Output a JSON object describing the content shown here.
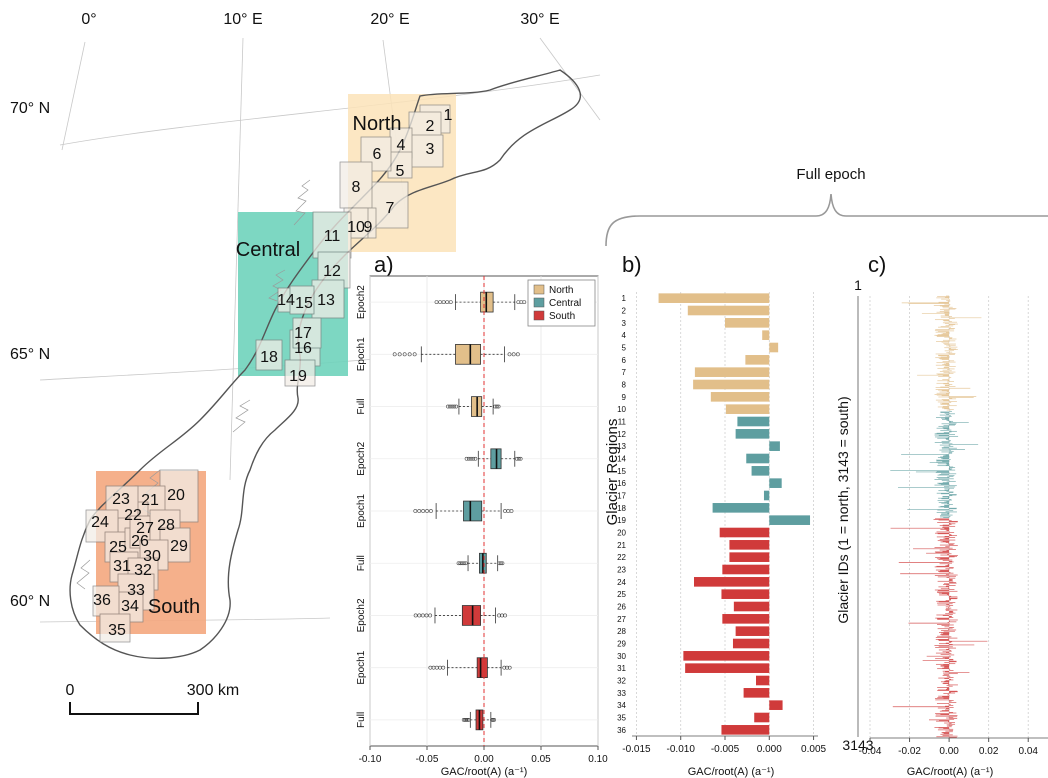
{
  "colors": {
    "north": "#E2BF8A",
    "central": "#5E9EA0",
    "south": "#D03A3A",
    "north_box": "#FBE3B8",
    "central_box": "#6FD3BB",
    "south_box": "#F4A77E",
    "zero_line": "#E03030",
    "gap": "#F7F3EC"
  },
  "map": {
    "lon_labels": [
      "0°",
      "10° E",
      "20° E",
      "30° E"
    ],
    "lat_labels": [
      "70° N",
      "65° N",
      "60° N"
    ],
    "regions": [
      {
        "name": "North",
        "color": "north_box"
      },
      {
        "name": "Central",
        "color": "central_box"
      },
      {
        "name": "South",
        "color": "south_box"
      }
    ],
    "scale_left": "0",
    "scale_right": "300 km",
    "glacier_ids": [
      "1",
      "2",
      "3",
      "4",
      "5",
      "6",
      "7",
      "8",
      "9",
      "10",
      "11",
      "12",
      "13",
      "14",
      "15",
      "16",
      "17",
      "18",
      "19",
      "20",
      "21",
      "22",
      "23",
      "24",
      "25",
      "26",
      "27",
      "28",
      "29",
      "30",
      "31",
      "32",
      "33",
      "34",
      "35",
      "36"
    ]
  },
  "brace_label": "Full epoch",
  "chart_data": [
    {
      "panel": "a)",
      "type": "box",
      "xlabel": "GAC/root(A) (a⁻¹)",
      "xlim": [
        -0.1,
        0.1
      ],
      "xticks": [
        "-0.10",
        "-0.05",
        "0.00",
        "0.05",
        "0.10"
      ],
      "legend": [
        "North",
        "Central",
        "South"
      ],
      "legend_position": "top-right",
      "rows": [
        {
          "label": "Epoch2",
          "group": "North",
          "whisker_low": -0.025,
          "q1": -0.003,
          "median": 0.002,
          "q3": 0.008,
          "whisker_high": 0.027
        },
        {
          "label": "Epoch1",
          "group": "North",
          "whisker_low": -0.055,
          "q1": -0.025,
          "median": -0.012,
          "q3": -0.003,
          "whisker_high": 0.018
        },
        {
          "label": "Full",
          "group": "North",
          "whisker_low": -0.022,
          "q1": -0.011,
          "median": -0.006,
          "q3": -0.002,
          "whisker_high": 0.008
        },
        {
          "label": "Epoch2",
          "group": "Central",
          "whisker_low": -0.005,
          "q1": 0.006,
          "median": 0.011,
          "q3": 0.015,
          "whisker_high": 0.027
        },
        {
          "label": "Epoch1",
          "group": "Central",
          "whisker_low": -0.042,
          "q1": -0.018,
          "median": -0.012,
          "q3": -0.002,
          "whisker_high": 0.015
        },
        {
          "label": "Full",
          "group": "Central",
          "whisker_low": -0.014,
          "q1": -0.004,
          "median": -0.001,
          "q3": 0.002,
          "whisker_high": 0.012
        },
        {
          "label": "Epoch2",
          "group": "South",
          "whisker_low": -0.043,
          "q1": -0.019,
          "median": -0.01,
          "q3": -0.003,
          "whisker_high": 0.01
        },
        {
          "label": "Epoch1",
          "group": "South",
          "whisker_low": -0.032,
          "q1": -0.006,
          "median": -0.003,
          "q3": 0.003,
          "whisker_high": 0.015
        },
        {
          "label": "Full",
          "group": "South",
          "whisker_low": -0.012,
          "q1": -0.007,
          "median": -0.004,
          "q3": -0.001,
          "whisker_high": 0.006
        }
      ]
    },
    {
      "panel": "b)",
      "type": "bar",
      "orientation": "horizontal",
      "ylabel": "Glacier Regions",
      "xlabel": "GAC/root(A) (a⁻¹)",
      "xlim": [
        -0.0155,
        0.0055
      ],
      "xticks": [
        "-0.015",
        "-0.010",
        "-0.005",
        "0.000",
        "0.005"
      ],
      "categories": [
        "1",
        "2",
        "3",
        "4",
        "5",
        "6",
        "7",
        "8",
        "9",
        "10",
        "11",
        "12",
        "13",
        "14",
        "15",
        "16",
        "17",
        "18",
        "19",
        "20",
        "21",
        "22",
        "23",
        "24",
        "25",
        "26",
        "27",
        "28",
        "29",
        "30",
        "31",
        "32",
        "33",
        "34",
        "35",
        "36"
      ],
      "values": [
        -0.0125,
        -0.0092,
        -0.005,
        -0.0008,
        0.001,
        -0.0027,
        -0.0084,
        -0.0086,
        -0.0066,
        -0.0049,
        -0.0036,
        -0.0038,
        0.0012,
        -0.0026,
        -0.002,
        0.0014,
        -0.0006,
        -0.0064,
        0.0046,
        -0.0056,
        -0.0045,
        -0.0045,
        -0.0053,
        -0.0085,
        -0.0054,
        -0.004,
        -0.0053,
        -0.0038,
        -0.0041,
        -0.0097,
        -0.0095,
        -0.0015,
        -0.0029,
        0.0015,
        -0.0017,
        -0.0054
      ],
      "groups": [
        "North",
        "North",
        "North",
        "North",
        "North",
        "North",
        "North",
        "North",
        "North",
        "North",
        "Central",
        "Central",
        "Central",
        "Central",
        "Central",
        "Central",
        "Central",
        "Central",
        "Central",
        "South",
        "South",
        "South",
        "South",
        "South",
        "South",
        "South",
        "South",
        "South",
        "South",
        "South",
        "South",
        "South",
        "South",
        "South",
        "South",
        "South"
      ]
    },
    {
      "panel": "c)",
      "type": "bar",
      "orientation": "horizontal",
      "ylabel": "Glacier IDs (1 = north, 3143 = south)",
      "xlabel": "GAC/root(A) (a⁻¹)",
      "xlim": [
        -0.04,
        0.05
      ],
      "xticks": [
        "-0.04",
        "-0.02",
        "0.00",
        "0.02",
        "0.04"
      ],
      "id_first": "1",
      "id_last": "3143",
      "segments": [
        {
          "group": "North",
          "n": 820
        },
        {
          "group": "Central",
          "n": 760
        },
        {
          "group": "South",
          "n": 1563
        }
      ]
    }
  ]
}
